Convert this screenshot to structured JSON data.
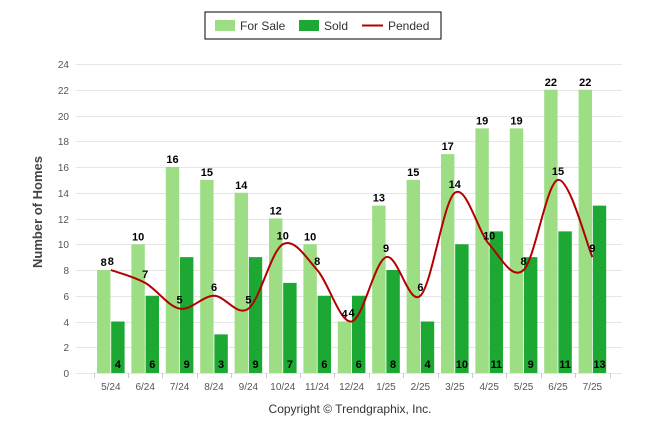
{
  "chart_data": {
    "type": "bar",
    "categories": [
      "5/24",
      "6/24",
      "7/24",
      "8/24",
      "9/24",
      "10/24",
      "11/24",
      "12/24",
      "1/25",
      "2/25",
      "3/25",
      "4/25",
      "5/25",
      "6/25",
      "7/25"
    ],
    "series": [
      {
        "name": "For Sale",
        "type": "bar",
        "color": "#9ddd84",
        "values": [
          8,
          10,
          16,
          15,
          14,
          12,
          10,
          4,
          13,
          15,
          17,
          19,
          19,
          22,
          22
        ]
      },
      {
        "name": "Sold",
        "type": "bar",
        "color": "#1ca832",
        "values": [
          4,
          6,
          9,
          3,
          9,
          7,
          6,
          6,
          8,
          4,
          10,
          11,
          9,
          11,
          13
        ]
      },
      {
        "name": "Pended",
        "type": "line",
        "color": "#b40000",
        "values": [
          8,
          7,
          5,
          6,
          5,
          10,
          8,
          4,
          9,
          6,
          14,
          10,
          8,
          15,
          9
        ]
      }
    ],
    "ylabel": "Number of Homes",
    "ylim": [
      0,
      24
    ],
    "yticks": [
      0,
      2,
      4,
      6,
      8,
      10,
      12,
      14,
      16,
      18,
      20,
      22,
      24
    ],
    "grid": true,
    "legend": "top-center"
  },
  "footer": "Copyright © Trendgraphix, Inc."
}
